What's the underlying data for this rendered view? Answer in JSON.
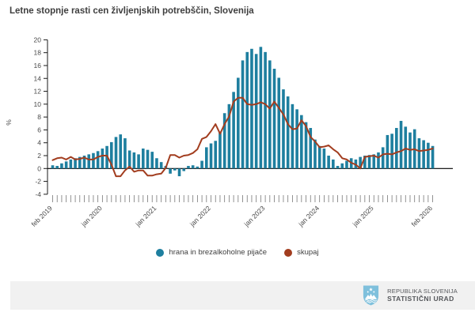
{
  "title": "Letne stopnje rasti cen življenjskih potrebščin, Slovenija",
  "colors": {
    "bar": "#1e7f9f",
    "line": "#a23d1f",
    "axis": "#1a1a1a",
    "zero_line": "#000000",
    "month_tick": "#777777",
    "axis_text": "#4a4a4a",
    "footer_bg": "#f1f1f1",
    "footer_text": "#55575b",
    "logo_blue": "#7fc0dc"
  },
  "legend": [
    {
      "label": "hrana in brezalkoholne pijače",
      "color": "#1e7f9f"
    },
    {
      "label": "skupaj",
      "color": "#a23d1f"
    }
  ],
  "chart_data": {
    "type": "bar",
    "note_type": "monthly bar series with overlaid line series",
    "x_first": "feb 2019",
    "x_last": "feb 2026",
    "n_points": 85,
    "xticks": [
      {
        "index": 0,
        "label": "feb 2019"
      },
      {
        "index": 11,
        "label": "jan 2020"
      },
      {
        "index": 23,
        "label": "jan 2021"
      },
      {
        "index": 35,
        "label": "jan 2022"
      },
      {
        "index": 47,
        "label": "jan 2023"
      },
      {
        "index": 59,
        "label": "jan 2024"
      },
      {
        "index": 71,
        "label": "jan 2025"
      },
      {
        "index": 84,
        "label": "feb 2026"
      }
    ],
    "ylabel": "%",
    "ylim": [
      -4,
      20
    ],
    "ytick_step": 2,
    "grid": "zero-line only",
    "legend_position": "bottom-center",
    "series": [
      {
        "name": "hrana in brezalkoholne pijače",
        "type": "bar",
        "color": "#1e7f9f",
        "values": [
          0.5,
          0.4,
          0.8,
          1.1,
          1.4,
          1.6,
          1.8,
          2.0,
          2.2,
          2.4,
          2.7,
          3.1,
          3.5,
          4.1,
          4.9,
          5.3,
          4.7,
          2.8,
          2.5,
          2.2,
          3.1,
          2.9,
          2.6,
          1.6,
          1.0,
          0.4,
          -0.8,
          -0.3,
          -1.2,
          -0.4,
          0.4,
          0.5,
          0.3,
          1.2,
          3.3,
          3.9,
          4.3,
          5.7,
          8.6,
          10.0,
          11.9,
          14.1,
          16.8,
          18.1,
          18.6,
          17.8,
          18.9,
          18.1,
          16.8,
          15.5,
          14.1,
          12.3,
          11.2,
          10.0,
          9.2,
          8.3,
          7.2,
          6.3,
          4.5,
          3.5,
          3.1,
          2.0,
          1.4,
          0.4,
          0.8,
          1.2,
          1.6,
          1.4,
          1.8,
          2.0,
          2.1,
          2.2,
          2.5,
          3.3,
          5.2,
          5.4,
          6.3,
          7.4,
          6.5,
          5.6,
          6.1,
          4.7,
          4.4,
          4.0,
          3.5
        ]
      },
      {
        "name": "skupaj",
        "type": "line",
        "color": "#a23d1f",
        "values": [
          1.3,
          1.6,
          1.7,
          1.4,
          1.8,
          1.4,
          1.5,
          1.7,
          1.4,
          1.4,
          1.8,
          2.0,
          2.0,
          0.6,
          -1.2,
          -1.2,
          -0.3,
          0.3,
          -0.5,
          -0.3,
          -0.3,
          -1.1,
          -1.1,
          -0.9,
          -0.8,
          0.1,
          2.1,
          2.1,
          1.7,
          2.0,
          2.1,
          2.4,
          3.0,
          4.6,
          4.9,
          5.8,
          6.9,
          5.4,
          6.9,
          8.1,
          10.4,
          11.0,
          11.0,
          10.0,
          9.9,
          10.0,
          10.3,
          10.0,
          9.3,
          10.4,
          9.4,
          8.4,
          6.9,
          6.1,
          6.2,
          7.5,
          6.6,
          4.9,
          4.2,
          3.3,
          3.4,
          3.6,
          3.0,
          2.5,
          1.6,
          1.4,
          0.9,
          0.6,
          0.0,
          1.8,
          1.9,
          2.0,
          1.7,
          2.2,
          2.3,
          2.2,
          2.5,
          2.7,
          3.1,
          2.9,
          3.0,
          2.7,
          2.8,
          2.9,
          3.1
        ]
      }
    ]
  },
  "footer": {
    "line1": "REPUBLIKA SLOVENIJA",
    "line2": "STATISTIČNI URAD"
  }
}
